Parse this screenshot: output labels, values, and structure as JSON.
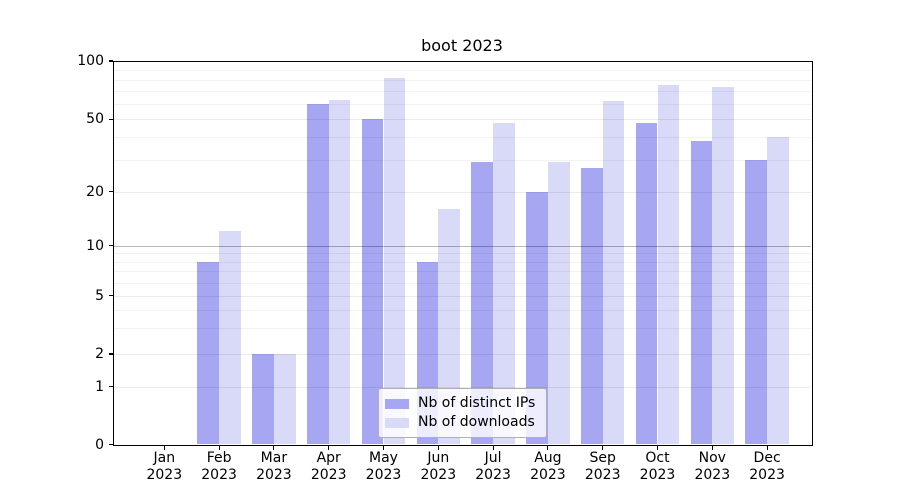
{
  "chart_data": {
    "type": "bar",
    "title": "boot 2023",
    "categories": [
      "Jan 2023",
      "Feb 2023",
      "Mar 2023",
      "Apr 2023",
      "May 2023",
      "Jun 2023",
      "Jul 2023",
      "Aug 2023",
      "Sep 2023",
      "Oct 2023",
      "Nov 2023",
      "Dec 2023"
    ],
    "series": [
      {
        "name": "Nb of distinct IPs",
        "color": "#a6a6f2",
        "values": [
          0,
          8,
          2,
          60,
          50,
          8,
          29,
          20,
          27,
          48,
          38,
          30
        ]
      },
      {
        "name": "Nb of downloads",
        "color": "#d9d9f8",
        "values": [
          0,
          12,
          2,
          63,
          82,
          16,
          48,
          29,
          62,
          75,
          73,
          40
        ]
      }
    ],
    "xlabel": "",
    "ylabel": "",
    "yscale": "symlog",
    "ylim": [
      0,
      100
    ],
    "yticks": [
      0,
      1,
      2,
      5,
      10,
      20,
      50,
      100
    ],
    "minor_yticks": [
      3,
      4,
      6,
      7,
      8,
      9,
      30,
      40,
      60,
      70,
      80,
      90
    ],
    "scale_anchors": [
      [
        0,
        0.0
      ],
      [
        1,
        0.1507
      ],
      [
        2,
        0.236
      ],
      [
        5,
        0.388
      ],
      [
        10,
        0.5184
      ],
      [
        20,
        0.6592
      ],
      [
        50,
        0.848
      ],
      [
        100,
        1.0
      ]
    ],
    "emphasized_gridline": 10,
    "grid": true,
    "legend_position": "lower center"
  }
}
